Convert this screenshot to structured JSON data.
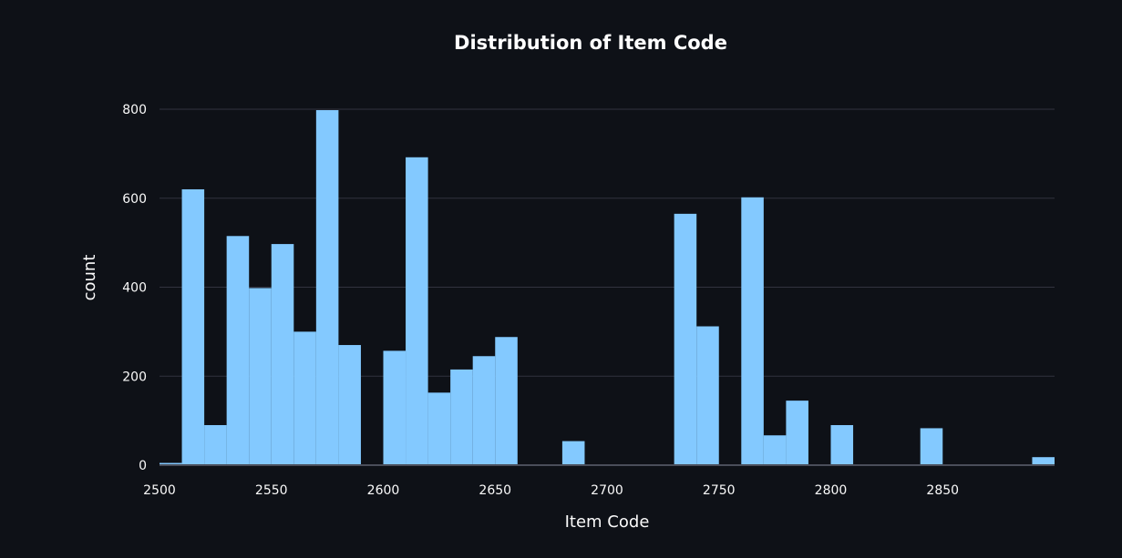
{
  "chart_data": {
    "type": "bar",
    "title": "Distribution of Item Code",
    "xlabel": "Item Code",
    "ylabel": "count",
    "xlim": [
      2500,
      2900
    ],
    "ylim": [
      0,
      800
    ],
    "bin_width": 10,
    "x_ticks": [
      "2500",
      "2550",
      "2600",
      "2650",
      "2700",
      "2750",
      "2800",
      "2850"
    ],
    "y_ticks": [
      "0",
      "200",
      "400",
      "600",
      "800"
    ],
    "grid": true,
    "bar_color": "#83c9ff",
    "bins": [
      {
        "x0": 2500,
        "x1": 2510,
        "count": 5
      },
      {
        "x0": 2510,
        "x1": 2520,
        "count": 620
      },
      {
        "x0": 2520,
        "x1": 2530,
        "count": 90
      },
      {
        "x0": 2530,
        "x1": 2540,
        "count": 515
      },
      {
        "x0": 2540,
        "x1": 2550,
        "count": 398
      },
      {
        "x0": 2550,
        "x1": 2560,
        "count": 497
      },
      {
        "x0": 2560,
        "x1": 2570,
        "count": 300
      },
      {
        "x0": 2570,
        "x1": 2580,
        "count": 798
      },
      {
        "x0": 2580,
        "x1": 2590,
        "count": 270
      },
      {
        "x0": 2590,
        "x1": 2600,
        "count": 0
      },
      {
        "x0": 2600,
        "x1": 2610,
        "count": 257
      },
      {
        "x0": 2610,
        "x1": 2620,
        "count": 692
      },
      {
        "x0": 2620,
        "x1": 2630,
        "count": 163
      },
      {
        "x0": 2630,
        "x1": 2640,
        "count": 215
      },
      {
        "x0": 2640,
        "x1": 2650,
        "count": 245
      },
      {
        "x0": 2650,
        "x1": 2660,
        "count": 288
      },
      {
        "x0": 2660,
        "x1": 2670,
        "count": 0
      },
      {
        "x0": 2670,
        "x1": 2680,
        "count": 0
      },
      {
        "x0": 2680,
        "x1": 2690,
        "count": 54
      },
      {
        "x0": 2690,
        "x1": 2700,
        "count": 0
      },
      {
        "x0": 2700,
        "x1": 2710,
        "count": 0
      },
      {
        "x0": 2710,
        "x1": 2720,
        "count": 0
      },
      {
        "x0": 2720,
        "x1": 2730,
        "count": 0
      },
      {
        "x0": 2730,
        "x1": 2740,
        "count": 565
      },
      {
        "x0": 2740,
        "x1": 2750,
        "count": 312
      },
      {
        "x0": 2750,
        "x1": 2760,
        "count": 0
      },
      {
        "x0": 2760,
        "x1": 2770,
        "count": 602
      },
      {
        "x0": 2770,
        "x1": 2780,
        "count": 67
      },
      {
        "x0": 2780,
        "x1": 2790,
        "count": 145
      },
      {
        "x0": 2790,
        "x1": 2800,
        "count": 0
      },
      {
        "x0": 2800,
        "x1": 2810,
        "count": 90
      },
      {
        "x0": 2810,
        "x1": 2820,
        "count": 0
      },
      {
        "x0": 2820,
        "x1": 2830,
        "count": 0
      },
      {
        "x0": 2830,
        "x1": 2840,
        "count": 0
      },
      {
        "x0": 2840,
        "x1": 2850,
        "count": 83
      },
      {
        "x0": 2850,
        "x1": 2860,
        "count": 0
      },
      {
        "x0": 2860,
        "x1": 2870,
        "count": 0
      },
      {
        "x0": 2870,
        "x1": 2880,
        "count": 0
      },
      {
        "x0": 2880,
        "x1": 2890,
        "count": 0
      },
      {
        "x0": 2890,
        "x1": 2900,
        "count": 18
      }
    ]
  }
}
